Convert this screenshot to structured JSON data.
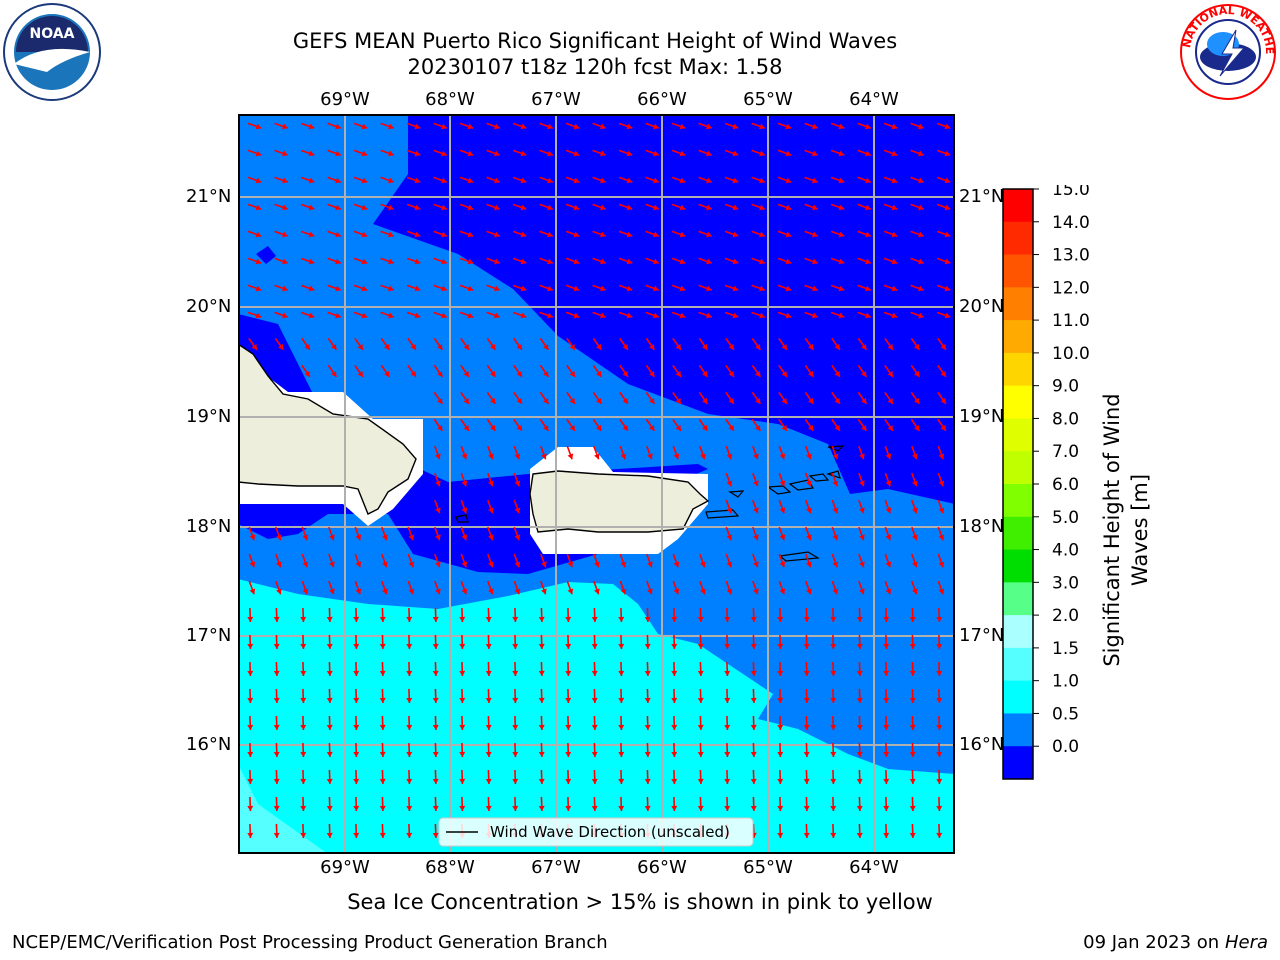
{
  "title": {
    "line1": "GEFS MEAN Puerto Rico Significant Height of Wind Waves",
    "line2": "20230107 t18z 120h fcst   Max: 1.58"
  },
  "axes": {
    "lon_labels": [
      "69°W",
      "68°W",
      "67°W",
      "66°W",
      "65°W",
      "64°W"
    ],
    "lat_labels": [
      "21°N",
      "20°N",
      "19°N",
      "18°N",
      "17°N",
      "16°N"
    ]
  },
  "legend": {
    "wind_wave_label": "Wind Wave Direction (unscaled)"
  },
  "colorbar": {
    "label_line1": "Significant Height of Wind",
    "label_line2": "Waves [m]",
    "ticks": [
      "15.0",
      "14.0",
      "13.0",
      "12.0",
      "11.0",
      "10.0",
      "9.0",
      "8.0",
      "7.0",
      "6.0",
      "5.0",
      "4.0",
      "3.0",
      "2.0",
      "1.5",
      "1.0",
      "0.5",
      "0.0"
    ],
    "colors": [
      "#ff0000",
      "#ff2a00",
      "#ff5500",
      "#ff8000",
      "#ffaa00",
      "#ffd500",
      "#ffff00",
      "#dfff00",
      "#bfff00",
      "#80ff00",
      "#40ee00",
      "#00dd00",
      "#55ff88",
      "#aaffff",
      "#55ffff",
      "#00ffff",
      "#0080ff",
      "#0000ff"
    ]
  },
  "caption": "Sea Ice Concentration > 15% is shown in pink to yellow",
  "footer": {
    "left": "NCEP/EMC/Verification Post Processing Product Generation Branch",
    "right_date": "09 Jan 2023 on",
    "right_machine": "Hera"
  },
  "logos": {
    "noaa": "NOAA",
    "nws": "NATIONAL WEATHER SERVICE"
  },
  "map_colors": {
    "deep": "#0000ff",
    "mid": "#0080ff",
    "light": "#00ffff",
    "lighter": "#55ffff",
    "land": "#eeeedd",
    "arrow": "#ff0000"
  }
}
